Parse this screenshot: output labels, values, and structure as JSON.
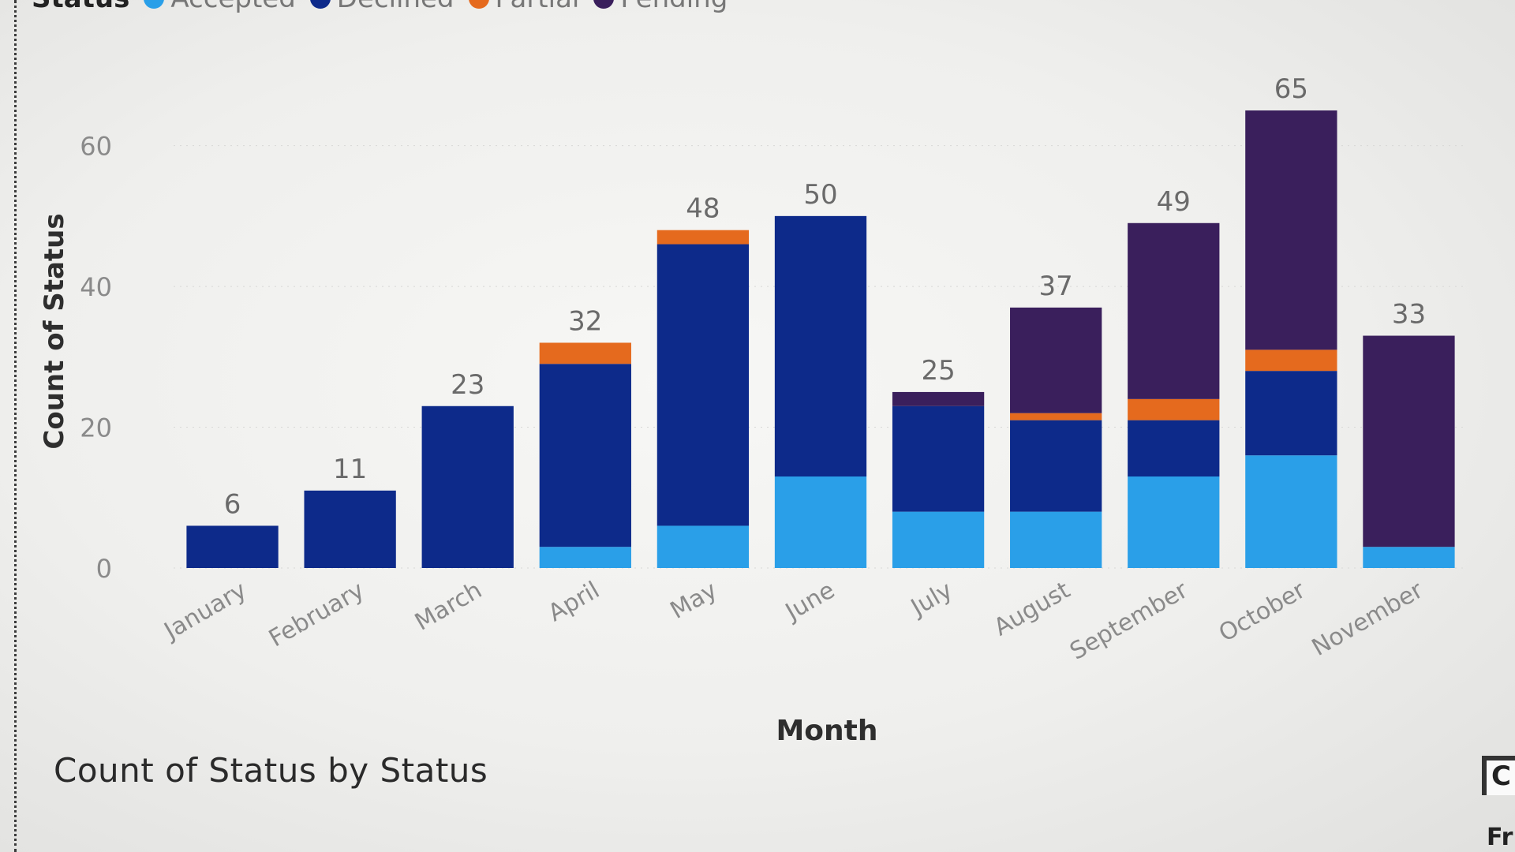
{
  "legend": {
    "title": "Status",
    "items": [
      {
        "label": "Accepted",
        "color": "#2a9fe8"
      },
      {
        "label": "Declined",
        "color": "#0d2a8a"
      },
      {
        "label": "Partial",
        "color": "#e56a1e"
      },
      {
        "label": "Pending",
        "color": "#3a1f5c"
      }
    ]
  },
  "chart_data": {
    "type": "bar",
    "stacked": true,
    "xlabel": "Month",
    "ylabel": "Count of Status",
    "ylim": [
      0,
      65
    ],
    "yticks": [
      0,
      20,
      40,
      60
    ],
    "categories": [
      "January",
      "February",
      "March",
      "April",
      "May",
      "June",
      "July",
      "August",
      "September",
      "October",
      "November"
    ],
    "series": [
      {
        "name": "Accepted",
        "color": "#2a9fe8",
        "values": [
          0,
          0,
          0,
          3,
          6,
          13,
          8,
          8,
          13,
          16,
          3
        ]
      },
      {
        "name": "Declined",
        "color": "#0d2a8a",
        "values": [
          6,
          11,
          23,
          26,
          40,
          37,
          15,
          13,
          8,
          12,
          0
        ]
      },
      {
        "name": "Partial",
        "color": "#e56a1e",
        "values": [
          0,
          0,
          0,
          3,
          2,
          0,
          0,
          1,
          3,
          3,
          0
        ]
      },
      {
        "name": "Pending",
        "color": "#3a1f5c",
        "values": [
          0,
          0,
          0,
          0,
          0,
          0,
          2,
          15,
          25,
          34,
          30
        ]
      }
    ],
    "totals": [
      6,
      11,
      23,
      32,
      48,
      50,
      25,
      37,
      49,
      65,
      33
    ]
  },
  "bottom_title": "Count of Status by Status",
  "corner": {
    "label": "C",
    "text": "Fr"
  }
}
